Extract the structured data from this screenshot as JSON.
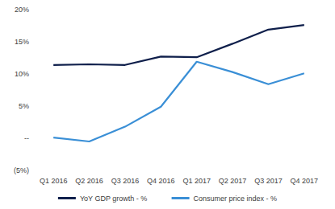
{
  "chart_data": {
    "type": "line",
    "categories": [
      "Q1 2016",
      "Q2 2016",
      "Q3 2016",
      "Q4 2016",
      "Q1 2017",
      "Q2 2017",
      "Q3 2017",
      "Q4 2017"
    ],
    "series": [
      {
        "name": "YoY GDP growth - %",
        "color": "#0f1f4b",
        "values": [
          11.4,
          11.5,
          11.4,
          12.7,
          12.6,
          14.7,
          16.9,
          17.6
        ]
      },
      {
        "name": "Consumer price index - %",
        "color": "#3a8fd6",
        "values": [
          0.1,
          -0.5,
          1.8,
          4.9,
          11.9,
          10.3,
          8.4,
          10.1
        ]
      }
    ],
    "ylim": [
      -5,
      20
    ],
    "yticks": [
      {
        "value": -5,
        "label": "(5%)"
      },
      {
        "value": 0,
        "label": "--"
      },
      {
        "value": 5,
        "label": "5%"
      },
      {
        "value": 10,
        "label": "10%"
      },
      {
        "value": 15,
        "label": "15%"
      },
      {
        "value": 20,
        "label": "20%"
      }
    ],
    "grid": false,
    "legend": "bottom"
  }
}
